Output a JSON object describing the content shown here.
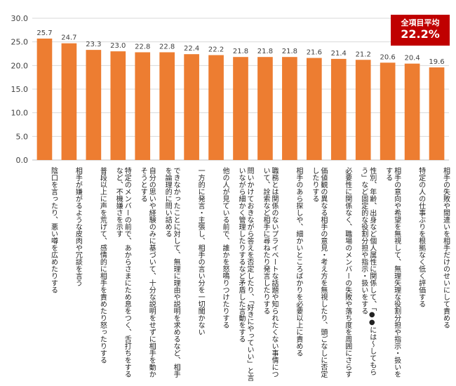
{
  "badge": {
    "title": "全項目平均",
    "value": "22.2%"
  },
  "colors": {
    "bar": "#ed7d31",
    "badge": "#c00000",
    "grid": "#d9d9d9",
    "text": "#404040"
  },
  "chart_data": {
    "type": "bar",
    "ylim": [
      0,
      30
    ],
    "yticks": [
      "0.0",
      "5.0",
      "10.0",
      "15.0",
      "20.0",
      "25.0",
      "30.0"
    ],
    "grid": true,
    "categories": [
      "陰口を言ったり、悪い噂を広めたりする",
      "相手が嫌がるような皮肉や冗談を言う",
      "普段以上に声を荒げて、感情的に相手を責めたり怒ったりする",
      "特定のメンバーの前で、あからさまにため息をつく、舌打ちをするなど、不機嫌さを示す",
      "自分の思いや経験のみに基づいて、十分な説明をせずに相手を動かそうとする",
      "できなかったことに対して、無理に理由や説明を求めるなど、相手を論理的に問い詰める",
      "一方的に発言・主張し、相手の言い分を一切聞かない",
      "他の人が見ている前で、誰かを怒鳴りつけたりする",
      "問いかけておきながら答えを否定したり、「好きにやっていい」と言いながら細かく管理したりするなど矛盾した言動をする",
      "職務とは関係のないプライベートな話題や知られたくない事情について、詮索など相手に尋ねたり発言したりする",
      "相手のあら探しや、細かいところばかりを必要以上に責める",
      "価値観の異なる相手の意見・考え方を無視したり、頭ごなしに否定したりする",
      "必要性に関係なく、職場のメンバーの失敗や落ち度を周囲にさらす",
      "性別、年齢、出身など個人属性に関係して、「●●には～してもらう」など固定的な役割分担や指示・扱いをする",
      "相手の意向や希望を無視して、無理矢理な役割分担や指示・扱いをする",
      "特定の人の仕事ぶりを根拠なく低く評価する",
      "相手の失敗や間違いを相手だけのせいにして責める"
    ],
    "values": [
      25.7,
      24.7,
      23.3,
      23.0,
      22.8,
      22.8,
      22.4,
      22.2,
      21.8,
      21.8,
      21.8,
      21.6,
      21.4,
      21.2,
      20.6,
      20.4,
      19.6
    ],
    "value_labels": [
      "25.7",
      "24.7",
      "23.3",
      "23.0",
      "22.8",
      "22.8",
      "22.4",
      "22.2",
      "21.8",
      "21.8",
      "21.8",
      "21.6",
      "21.4",
      "21.2",
      "20.6",
      "20.4",
      "19.6"
    ]
  }
}
